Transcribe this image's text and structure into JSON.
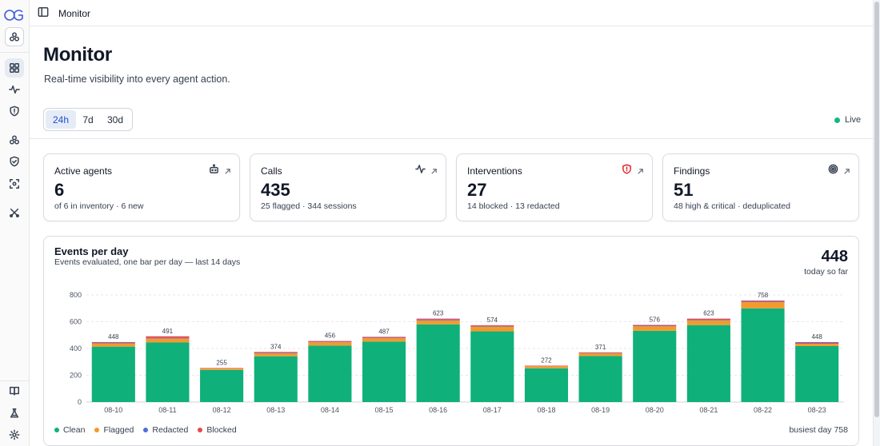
{
  "breadcrumb": "Monitor",
  "page": {
    "title": "Monitor",
    "subtitle": "Real-time visibility into every agent action."
  },
  "range": {
    "options": [
      "24h",
      "7d",
      "30d"
    ],
    "selected": "24h"
  },
  "live_label": "Live",
  "kpis": [
    {
      "label": "Active agents",
      "value": "6",
      "sub": "of 6 in inventory · 6 new",
      "icon": "robot-icon"
    },
    {
      "label": "Calls",
      "value": "435",
      "sub": "25 flagged · 344 sessions",
      "icon": "activity-icon"
    },
    {
      "label": "Interventions",
      "value": "27",
      "sub": "14 blocked · 13 redacted",
      "icon": "shield-alert-icon"
    },
    {
      "label": "Findings",
      "value": "51",
      "sub": "48 high & critical · deduplicated",
      "icon": "target-icon"
    }
  ],
  "events_panel": {
    "title": "Events per day",
    "subtitle": "Events evaluated, one bar per day — last 14 days",
    "today_value": "448",
    "today_label": "today so far",
    "busiest_label": "busiest day 758"
  },
  "colors": {
    "clean": "#10b07a",
    "flagged": "#f39a2c",
    "redacted": "#4f6fd6",
    "blocked": "#e5484d",
    "accent": "#1d4ed8",
    "live": "#10b981"
  },
  "chart_data": {
    "type": "bar",
    "stacked": true,
    "title": "Events per day",
    "categories": [
      "08-10",
      "08-11",
      "08-12",
      "08-13",
      "08-14",
      "08-15",
      "08-16",
      "08-17",
      "08-18",
      "08-19",
      "08-20",
      "08-21",
      "08-22",
      "08-23"
    ],
    "totals": [
      448,
      491,
      255,
      374,
      456,
      487,
      623,
      574,
      272,
      371,
      576,
      623,
      758,
      448
    ],
    "series": [
      {
        "name": "Clean",
        "color": "#10b07a",
        "values": [
          414,
          445,
          240,
          342,
          422,
          452,
          580,
          528,
          252,
          344,
          532,
          575,
          700,
          418
        ]
      },
      {
        "name": "Flagged",
        "color": "#f39a2c",
        "values": [
          24,
          30,
          12,
          22,
          25,
          26,
          30,
          36,
          16,
          21,
          34,
          36,
          46,
          18
        ]
      },
      {
        "name": "Redacted",
        "color": "#4f6fd6",
        "values": [
          4,
          4,
          1,
          4,
          3,
          3,
          6,
          4,
          1,
          2,
          4,
          4,
          5,
          6
        ]
      },
      {
        "name": "Blocked",
        "color": "#e5484d",
        "values": [
          6,
          12,
          2,
          6,
          6,
          6,
          7,
          6,
          3,
          4,
          6,
          8,
          7,
          6
        ]
      }
    ],
    "yticks": [
      0,
      200,
      400,
      600,
      800
    ],
    "ylim": [
      0,
      800
    ],
    "grid": true,
    "legend_position": "bottom-left"
  }
}
